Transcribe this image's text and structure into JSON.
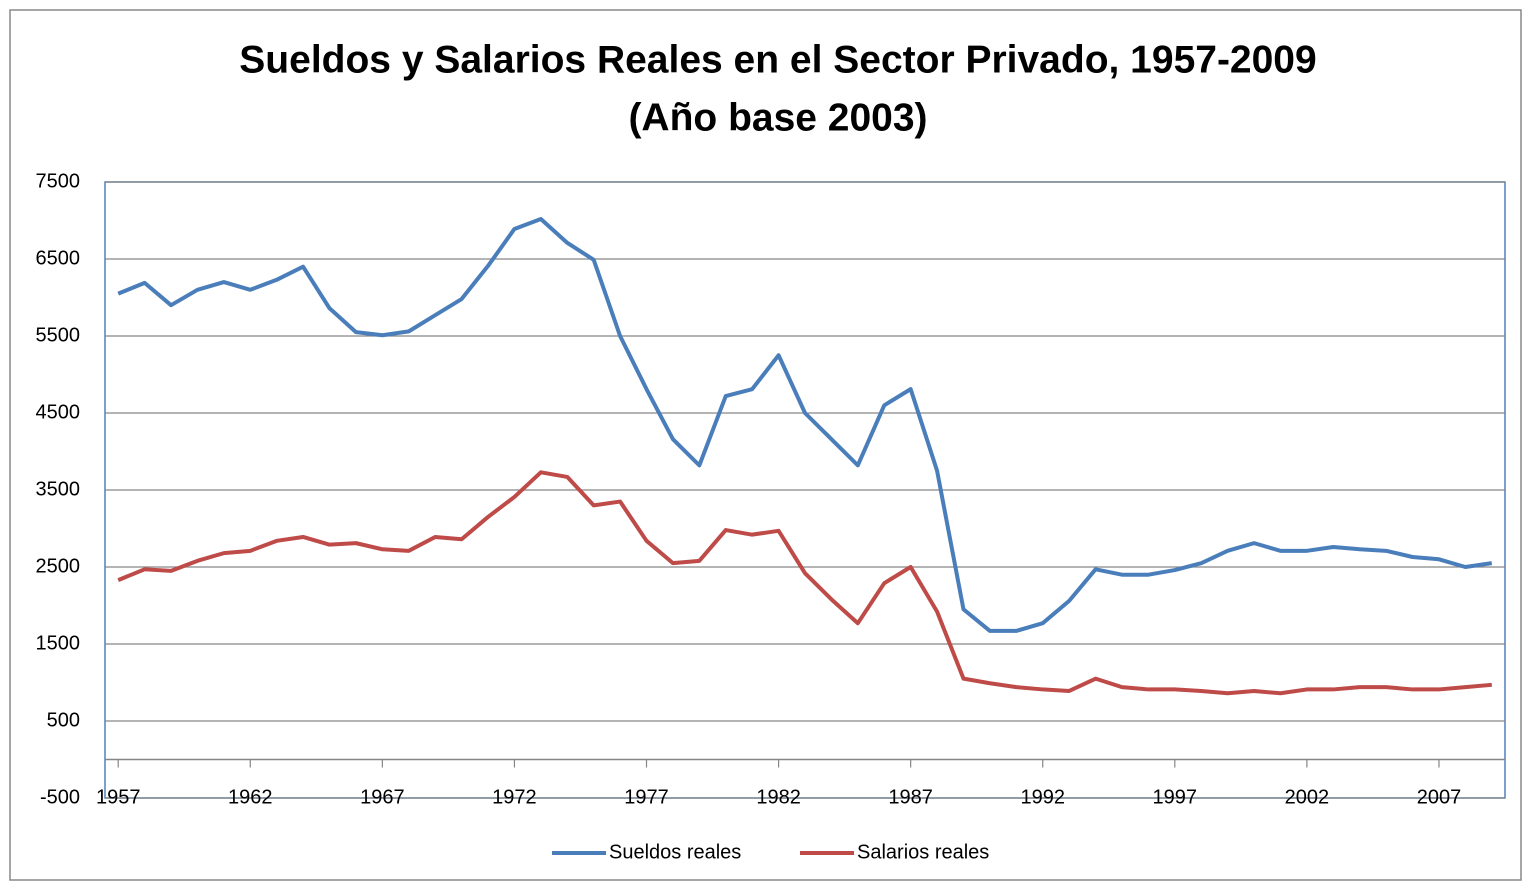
{
  "chart_data": {
    "type": "line",
    "title": "Sueldos y Salarios Reales en el Sector Privado, 1957-2009",
    "subtitle": "(Año base 2003)",
    "x": [
      1957,
      1958,
      1959,
      1960,
      1961,
      1962,
      1963,
      1964,
      1965,
      1966,
      1967,
      1968,
      1969,
      1970,
      1971,
      1972,
      1973,
      1974,
      1975,
      1976,
      1977,
      1978,
      1979,
      1980,
      1981,
      1982,
      1983,
      1984,
      1985,
      1986,
      1987,
      1988,
      1989,
      1990,
      1991,
      1992,
      1993,
      1994,
      1995,
      1996,
      1997,
      1998,
      1999,
      2000,
      2001,
      2002,
      2003,
      2004,
      2005,
      2006,
      2007,
      2008,
      2009
    ],
    "xlim": [
      1956.5,
      2009.5
    ],
    "xticks": [
      1957,
      1962,
      1967,
      1972,
      1977,
      1982,
      1987,
      1992,
      1997,
      2002,
      2007
    ],
    "ylim": [
      -500,
      7500
    ],
    "yticks": [
      -500,
      500,
      1500,
      2500,
      3500,
      4500,
      5500,
      6500,
      7500
    ],
    "grid": true,
    "legend": "bottom",
    "series": [
      {
        "name": "Sueldos reales",
        "color": "#4a7ebb",
        "values": [
          6050,
          6190,
          5900,
          6100,
          6200,
          6100,
          6230,
          6400,
          5860,
          5550,
          5510,
          5560,
          5770,
          5980,
          6410,
          6890,
          7020,
          6710,
          6490,
          5500,
          4810,
          4160,
          3820,
          4720,
          4810,
          5250,
          4500,
          4160,
          3820,
          4600,
          4810,
          3750,
          1950,
          1670,
          1670,
          1770,
          2060,
          2470,
          2400,
          2400,
          2460,
          2550,
          2710,
          2810,
          2710,
          2710,
          2760,
          2730,
          2710,
          2630,
          2600,
          2500,
          2550
        ]
      },
      {
        "name": "Salarios reales",
        "color": "#be4b48",
        "values": [
          2330,
          2470,
          2450,
          2580,
          2680,
          2710,
          2840,
          2890,
          2790,
          2810,
          2730,
          2710,
          2890,
          2860,
          3150,
          3410,
          3730,
          3670,
          3300,
          3350,
          2840,
          2550,
          2580,
          2980,
          2920,
          2970,
          2420,
          2080,
          1770,
          2290,
          2500,
          1920,
          1050,
          990,
          940,
          910,
          890,
          1050,
          940,
          910,
          910,
          890,
          860,
          890,
          860,
          910,
          910,
          940,
          940,
          910,
          910,
          940,
          970
        ]
      }
    ]
  }
}
